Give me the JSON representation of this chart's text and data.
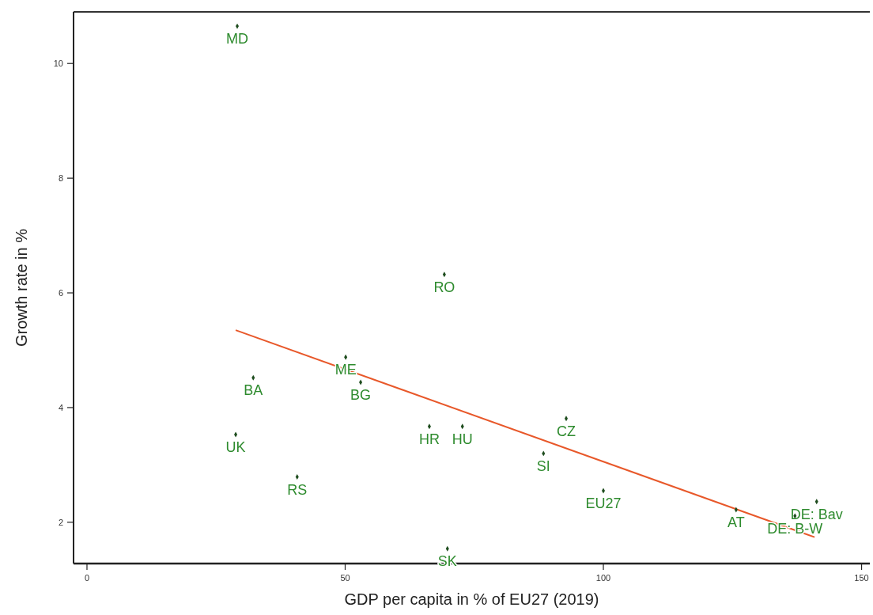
{
  "chart_data": {
    "type": "scatter",
    "xlabel": "GDP per capita in % of EU27 (2019)",
    "ylabel": "Growth rate in %",
    "xlim": [
      -2.6,
      151.6
    ],
    "ylim": [
      1.28,
      10.9
    ],
    "xticks": [
      0,
      50,
      100,
      150
    ],
    "yticks": [
      2,
      4,
      6,
      8,
      10
    ],
    "grid": false,
    "marker": "diamond",
    "series": [
      {
        "color": "#1f4d1f",
        "x": [
          29.1,
          69.2,
          50.1,
          32.2,
          53.0,
          28.8,
          40.7,
          66.3,
          72.7,
          69.8,
          92.8,
          88.4,
          100,
          125.7,
          141.3,
          137.1
        ],
        "values": [
          10.65,
          6.32,
          4.88,
          4.52,
          4.44,
          3.53,
          2.79,
          3.67,
          3.67,
          1.54,
          3.81,
          3.2,
          2.55,
          2.22,
          2.36,
          2.11
        ]
      },
      {
        "type": "line",
        "color": "#e8582a",
        "marker": "none",
        "x": [
          28.8,
          140.9
        ],
        "values": [
          5.35,
          1.74
        ]
      }
    ],
    "annotations": [
      {
        "text": "MD",
        "x": 29.1,
        "y": 10.65
      },
      {
        "text": "RO",
        "x": 69.2,
        "y": 6.32
      },
      {
        "text": "ME",
        "x": 50.1,
        "y": 4.88
      },
      {
        "text": "BA",
        "x": 32.2,
        "y": 4.52
      },
      {
        "text": "BG",
        "x": 53.0,
        "y": 4.44
      },
      {
        "text": "UK",
        "x": 28.8,
        "y": 3.53
      },
      {
        "text": "RS",
        "x": 40.7,
        "y": 2.79
      },
      {
        "text": "HR",
        "x": 66.3,
        "y": 3.67
      },
      {
        "text": "HU",
        "x": 72.7,
        "y": 3.67
      },
      {
        "text": "SK",
        "x": 69.8,
        "y": 1.54
      },
      {
        "text": "CZ",
        "x": 92.8,
        "y": 3.81
      },
      {
        "text": "SI",
        "x": 88.4,
        "y": 3.2
      },
      {
        "text": "EU27",
        "x": 100,
        "y": 2.55
      },
      {
        "text": "AT",
        "x": 125.7,
        "y": 2.22
      },
      {
        "text": "DE: Bav",
        "x": 141.3,
        "y": 2.36
      },
      {
        "text": "DE: B-W",
        "x": 137.1,
        "y": 2.11
      }
    ]
  }
}
